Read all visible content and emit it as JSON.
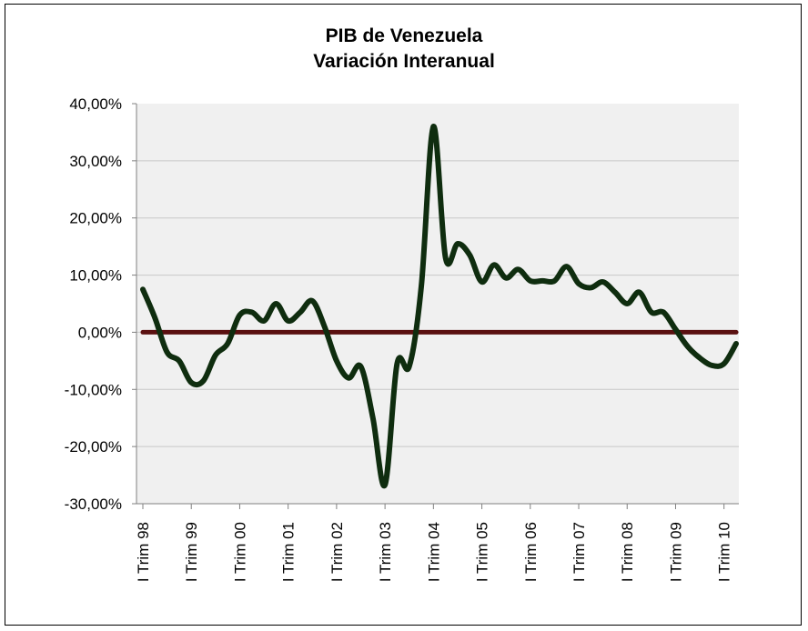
{
  "chart_data": {
    "type": "line",
    "title": "PIB de Venezuela",
    "subtitle": "Variación Interanual",
    "xlabel": "",
    "ylabel": "",
    "ylim": [
      -30,
      40
    ],
    "y_ticks": [
      40,
      30,
      20,
      10,
      0,
      -10,
      -20,
      -30
    ],
    "y_tick_labels": [
      "40,00%",
      "30,00%",
      "20,00%",
      "10,00%",
      "0,00%",
      "-10,00%",
      "-20,00%",
      "-30,00%"
    ],
    "x_tick_labels": [
      "I Trim 98",
      "I Trim 99",
      "I Trim 00",
      "I Trim 01",
      "I Trim 02",
      "I Trim 03",
      "I Trim 04",
      "I Trim 05",
      "I Trim 06",
      "I Trim 07",
      "I Trim 08",
      "I Trim 09",
      "I Trim 10"
    ],
    "grid": true,
    "legend": "none",
    "series": [
      {
        "values": [
          7.5,
          2.5,
          -3.5,
          -5.0,
          -8.8,
          -8.5,
          -4.0,
          -2.0,
          3.0,
          3.5,
          2.0,
          5.0,
          2.0,
          3.5,
          5.5,
          1.0,
          -5.0,
          -8.0,
          -6.0,
          -15.0,
          -26.7,
          -5.5,
          -6.0,
          8.0,
          36.0,
          13.0,
          15.5,
          13.5,
          8.8,
          11.8,
          9.5,
          11.0,
          9.0,
          9.0,
          9.0,
          11.5,
          8.5,
          7.8,
          8.8,
          7.0,
          5.0,
          7.0,
          3.5,
          3.5,
          0.5,
          -2.5,
          -4.5,
          -5.8,
          -5.5,
          -2.0
        ]
      }
    ],
    "baseline": {
      "value": 0
    }
  },
  "colors": {
    "plot_background": "#f0f0f0",
    "gridline": "#c8c8c8",
    "series": "#0f2d0f",
    "baseline": "#5a1010",
    "axis": "#808080",
    "text": "#000000"
  }
}
